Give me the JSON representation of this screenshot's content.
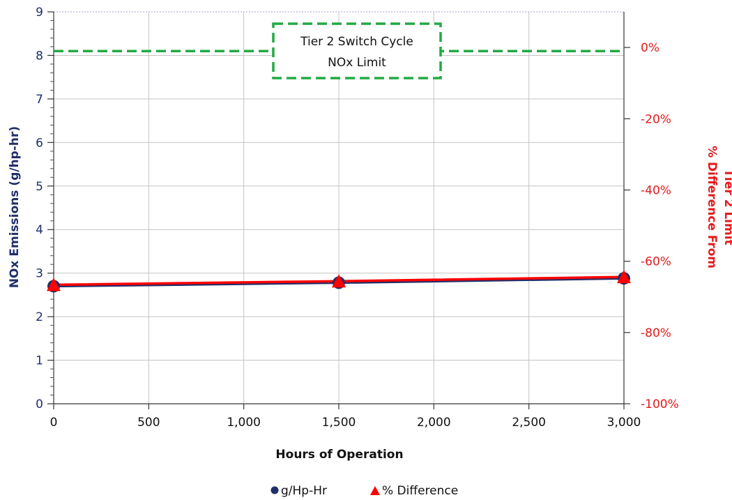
{
  "chart_data": {
    "type": "line",
    "x": [
      0,
      1500,
      3000
    ],
    "x_tick_labels": [
      "0",
      "500",
      "1,000",
      "1,500",
      "2,000",
      "2,500",
      "3,000"
    ],
    "x_ticks": [
      0,
      500,
      1000,
      1500,
      2000,
      2500,
      3000
    ],
    "xlim": [
      0,
      3000
    ],
    "xlabel": "Hours of Operation",
    "ylabel": "NOx Emissions (g/hp-hr)",
    "ylim": [
      0,
      9
    ],
    "y_ticks": [
      0,
      1,
      2,
      3,
      4,
      5,
      6,
      7,
      8,
      9
    ],
    "y_tick_labels": [
      "0",
      "1",
      "2",
      "3",
      "4",
      "5",
      "6",
      "7",
      "8",
      "9"
    ],
    "y2label_lines": [
      "% Difference From",
      "Tier 2 Limit"
    ],
    "y2lim": [
      -100,
      10
    ],
    "y2_ticks": [
      0,
      -20,
      -40,
      -60,
      -80,
      -100
    ],
    "y2_tick_labels": [
      "0%",
      "-20%",
      "-40%",
      "-60%",
      "-80%",
      "-100%"
    ],
    "grid": true,
    "legend_position": "bottom",
    "series": [
      {
        "name": "g/Hp-Hr",
        "axis": "left",
        "marker": "circle",
        "color": "#1f2f6b",
        "values": [
          2.7,
          2.78,
          2.88
        ]
      },
      {
        "name": "% Difference",
        "axis": "right",
        "marker": "triangle",
        "color": "#ff0000",
        "values": [
          -66.6,
          -65.6,
          -64.4
        ]
      }
    ],
    "reference_line": {
      "value": 8.1,
      "axis": "left",
      "style": "dashed",
      "color": "#22aa44"
    },
    "annotation": {
      "lines": [
        "Tier 2 Switch Cycle",
        "NOx Limit"
      ]
    }
  }
}
